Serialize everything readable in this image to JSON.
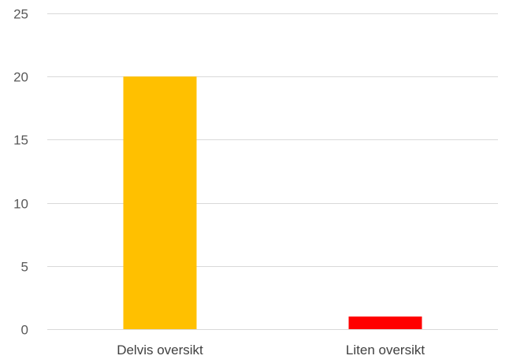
{
  "chart_data": {
    "type": "bar",
    "categories": [
      "Delvis oversikt",
      "Liten oversikt"
    ],
    "values": [
      20,
      1
    ],
    "colors": [
      "#FFC000",
      "#FF0000"
    ],
    "ylim": [
      0,
      25
    ],
    "yticks": [
      "0",
      "5",
      "10",
      "15",
      "20",
      "25"
    ],
    "title": "",
    "xlabel": "",
    "ylabel": "",
    "grid": true,
    "legend": "none"
  }
}
